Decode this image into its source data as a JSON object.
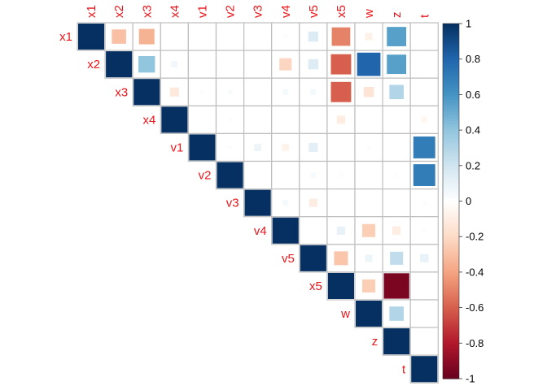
{
  "chart_data": {
    "type": "heatmap",
    "variables": [
      "x1",
      "x2",
      "x3",
      "x4",
      "v1",
      "v2",
      "v3",
      "v4",
      "v5",
      "x5",
      "w",
      "z",
      "t"
    ],
    "layout": "upper-triangle",
    "method": "square",
    "values": [
      [
        1,
        -0.3,
        -0.35,
        0.01,
        0,
        0,
        0,
        0.02,
        0.15,
        -0.5,
        -0.08,
        0.55,
        0
      ],
      [
        null,
        1,
        0.4,
        0.06,
        0,
        0,
        0,
        -0.22,
        0.15,
        -0.6,
        0.8,
        0.55,
        0
      ],
      [
        null,
        null,
        1,
        -0.12,
        0.02,
        0.03,
        0,
        0.05,
        0.05,
        -0.6,
        -0.15,
        0.3,
        0
      ],
      [
        null,
        null,
        null,
        1,
        0,
        0.02,
        0,
        0.01,
        0,
        -0.1,
        0,
        0,
        -0.05
      ],
      [
        null,
        null,
        null,
        null,
        1,
        0.02,
        0.08,
        -0.07,
        0.12,
        0.01,
        0.02,
        0.01,
        0.7
      ],
      [
        null,
        null,
        null,
        null,
        null,
        1,
        0,
        0,
        0.04,
        0.02,
        0,
        0.02,
        0.7
      ],
      [
        null,
        null,
        null,
        null,
        null,
        null,
        1,
        0.05,
        -0.1,
        0,
        0,
        0.01,
        0.02
      ],
      [
        null,
        null,
        null,
        null,
        null,
        null,
        null,
        1,
        0.01,
        0.1,
        -0.25,
        -0.1,
        0.02
      ],
      [
        null,
        null,
        null,
        null,
        null,
        null,
        null,
        null,
        1,
        -0.28,
        0.08,
        0.25,
        0.1
      ],
      [
        null,
        null,
        null,
        null,
        null,
        null,
        null,
        null,
        null,
        1,
        -0.25,
        -0.95,
        0
      ],
      [
        null,
        null,
        null,
        null,
        null,
        null,
        null,
        null,
        null,
        null,
        1,
        0.3,
        0
      ],
      [
        null,
        null,
        null,
        null,
        null,
        null,
        null,
        null,
        null,
        null,
        null,
        1,
        0
      ],
      [
        null,
        null,
        null,
        null,
        null,
        null,
        null,
        null,
        null,
        null,
        null,
        null,
        1
      ]
    ],
    "colorbar": {
      "range": [
        -1,
        1
      ],
      "ticks": [
        "1",
        "0.8",
        "0.6",
        "0.4",
        "0.2",
        "0",
        "-0.2",
        "-0.4",
        "-0.6",
        "-0.8",
        "-1"
      ]
    },
    "colors": {
      "label": "#e8161b",
      "grid": "#bebebe",
      "negative_end": "#67001f",
      "positive_end": "#053061",
      "neutral": "#ffffff"
    }
  }
}
